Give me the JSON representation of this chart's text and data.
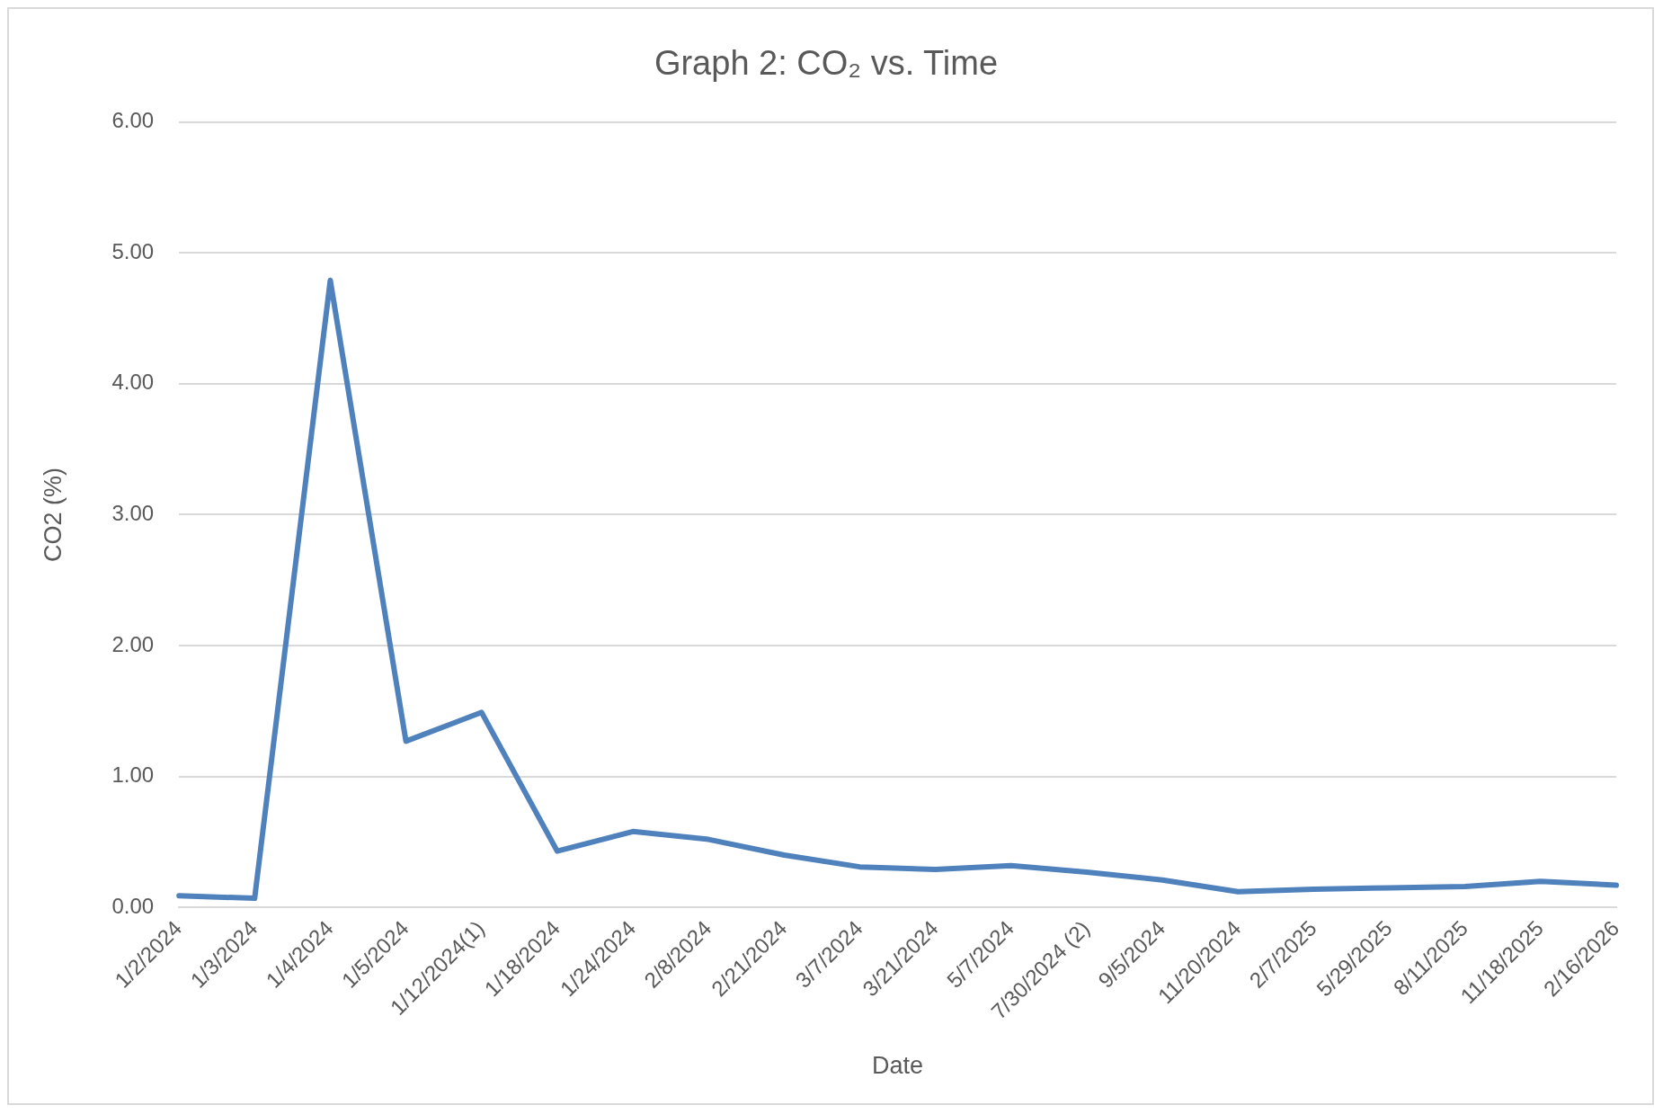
{
  "chart_data": {
    "type": "line",
    "title": "Graph 2: CO₂ vs. Time",
    "xlabel": "Date",
    "ylabel": "CO2 (%)",
    "categories": [
      "1/2/2024",
      "1/3/2024",
      "1/4/2024",
      "1/5/2024",
      "1/12/2024(1)",
      "1/18/2024",
      "1/24/2024",
      "2/8/2024",
      "2/21/2024",
      "3/7/2024",
      "3/21/2024",
      "5/7/2024",
      "7/30/2024 (2)",
      "9/5/2024",
      "11/20/2024",
      "2/7/2025",
      "5/29/2025",
      "8/11/2025",
      "11/18/2025",
      "2/16/2026"
    ],
    "series": [
      {
        "color": "#4f81bd",
        "values": [
          0.09,
          0.07,
          4.79,
          1.27,
          1.49,
          0.43,
          0.58,
          0.52,
          0.4,
          0.31,
          0.29,
          0.32,
          0.27,
          0.21,
          0.12,
          0.14,
          0.15,
          0.16,
          0.2,
          0.17
        ]
      }
    ],
    "ylim": [
      0,
      6
    ],
    "yticks": [
      {
        "value": 0,
        "label": "0.00"
      },
      {
        "value": 1,
        "label": "1.00"
      },
      {
        "value": 2,
        "label": "2.00"
      },
      {
        "value": 3,
        "label": "3.00"
      },
      {
        "value": 4,
        "label": "4.00"
      },
      {
        "value": 5,
        "label": "5.00"
      },
      {
        "value": 6,
        "label": "6.00"
      }
    ],
    "grid": "y",
    "legend": false,
    "marker": "none",
    "line_style": "solid"
  }
}
